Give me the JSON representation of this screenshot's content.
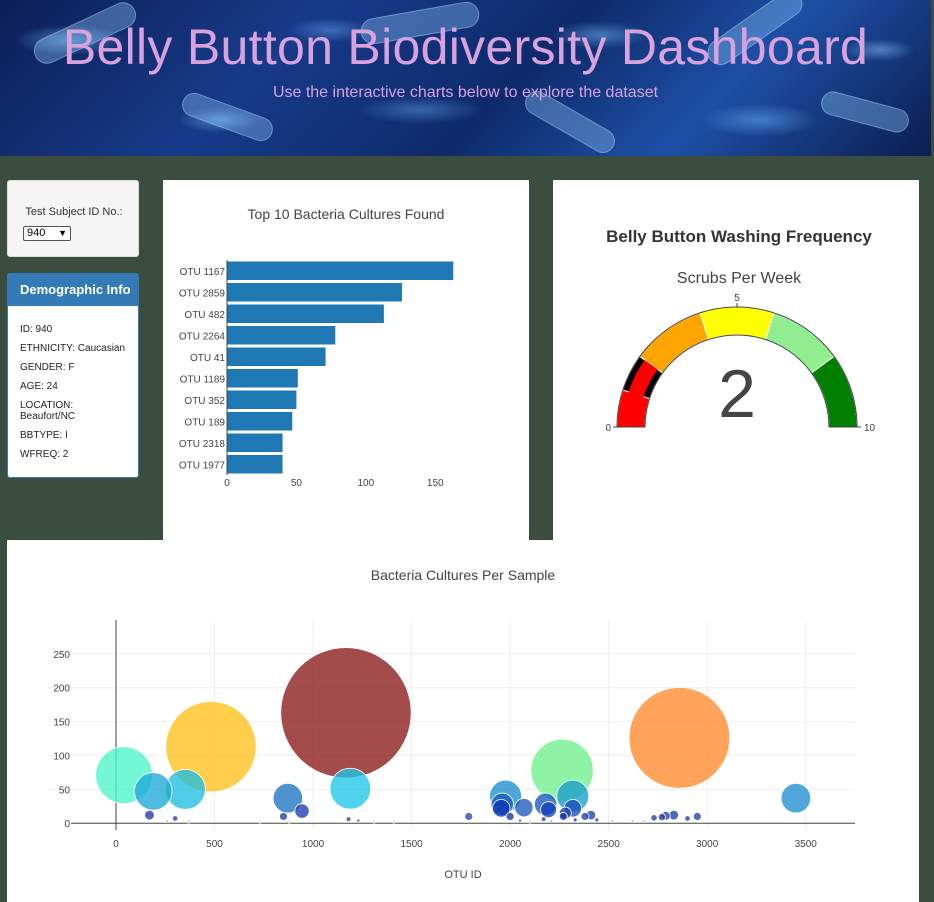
{
  "header": {
    "title": "Belly Button Biodiversity Dashboard",
    "subtitle": "Use the interactive charts below to explore the dataset"
  },
  "selector": {
    "label": "Test Subject ID No.:",
    "value": "940"
  },
  "demographic": {
    "title": "Demographic Info",
    "rows": [
      "ID: 940",
      "ETHNICITY: Caucasian",
      "GENDER: F",
      "AGE: 24",
      "LOCATION: Beaufort/NC",
      "BBTYPE: I",
      "WFREQ: 2"
    ]
  },
  "colors": {
    "bar": "#1f77b4",
    "header_text": "#d8a2dd",
    "panel_accent": "#337ab7"
  },
  "chart_data": [
    {
      "type": "bar",
      "orientation": "horizontal",
      "title": "Top 10 Bacteria Cultures Found",
      "categories": [
        "OTU 1167",
        "OTU 2859",
        "OTU 482",
        "OTU 2264",
        "OTU 41",
        "OTU 1189",
        "OTU 352",
        "OTU 189",
        "OTU 2318",
        "OTU 1977"
      ],
      "values": [
        163,
        126,
        113,
        78,
        71,
        51,
        50,
        47,
        40,
        40
      ],
      "xticks": [
        0,
        50,
        100,
        150
      ],
      "xlim": [
        0,
        170
      ]
    },
    {
      "type": "gauge",
      "title": "Belly Button Washing Frequency",
      "subtitle": "Scrubs Per Week",
      "value": 2,
      "range": [
        0,
        10
      ],
      "tick_labels": [
        "0",
        "5",
        "10"
      ],
      "steps": [
        {
          "from": 0,
          "to": 1,
          "color": "#ff0000"
        },
        {
          "from": 1,
          "to": 2,
          "color": "#000000"
        },
        {
          "from": 2,
          "to": 4,
          "color": "#ffa500"
        },
        {
          "from": 4,
          "to": 6,
          "color": "#ffff00"
        },
        {
          "from": 6,
          "to": 8,
          "color": "#90ee90"
        },
        {
          "from": 8,
          "to": 10,
          "color": "#008000"
        }
      ]
    },
    {
      "type": "scatter",
      "title": "Bacteria Cultures Per Sample",
      "xlabel": "OTU ID",
      "xlim": [
        -350,
        3750
      ],
      "ylim": [
        -10,
        300
      ],
      "xticks": [
        0,
        500,
        1000,
        1500,
        2000,
        2500,
        3000,
        3500
      ],
      "yticks": [
        0,
        50,
        100,
        150,
        200,
        250
      ],
      "points": [
        {
          "x": 1167,
          "y": 163,
          "color": "#8b1a1a"
        },
        {
          "x": 2859,
          "y": 126,
          "color": "#ff8a2b"
        },
        {
          "x": 482,
          "y": 113,
          "color": "#ffc21a"
        },
        {
          "x": 2264,
          "y": 78,
          "color": "#6ef08a"
        },
        {
          "x": 41,
          "y": 71,
          "color": "#4df5c9"
        },
        {
          "x": 1189,
          "y": 51,
          "color": "#1fc8e8"
        },
        {
          "x": 352,
          "y": 50,
          "color": "#20bce0"
        },
        {
          "x": 189,
          "y": 47,
          "color": "#1ea8d8"
        },
        {
          "x": 2318,
          "y": 40,
          "color": "#1a9ccc"
        },
        {
          "x": 1977,
          "y": 40,
          "color": "#1a8ed0"
        },
        {
          "x": 3450,
          "y": 37,
          "color": "#1f8ed0"
        },
        {
          "x": 872,
          "y": 37,
          "color": "#1e74c4"
        },
        {
          "x": 1960,
          "y": 28,
          "color": "#1a5cc0"
        },
        {
          "x": 2180,
          "y": 28,
          "color": "#1958bb"
        },
        {
          "x": 2070,
          "y": 23,
          "color": "#1f5ac0"
        },
        {
          "x": 1955,
          "y": 22,
          "color": "#0c36b8"
        },
        {
          "x": 2195,
          "y": 20,
          "color": "#133fb8"
        },
        {
          "x": 2318,
          "y": 22,
          "color": "#1650bb"
        },
        {
          "x": 944,
          "y": 18,
          "color": "#1c3bb0"
        },
        {
          "x": 2280,
          "y": 15,
          "color": "#1a40b0"
        },
        {
          "x": 2830,
          "y": 12,
          "color": "#1a3eaa"
        },
        {
          "x": 2410,
          "y": 12,
          "color": "#1f42ab"
        },
        {
          "x": 2790,
          "y": 11,
          "color": "#2040a8"
        },
        {
          "x": 2380,
          "y": 10,
          "color": "#1f3da5"
        },
        {
          "x": 2950,
          "y": 10,
          "color": "#2242a8"
        },
        {
          "x": 2000,
          "y": 10,
          "color": "#1333a5"
        },
        {
          "x": 2270,
          "y": 10,
          "color": "#1536a0"
        },
        {
          "x": 170,
          "y": 12,
          "color": "#1f37a0"
        },
        {
          "x": 1790,
          "y": 10,
          "color": "#3245a5"
        },
        {
          "x": 850,
          "y": 10,
          "color": "#2a3ea0"
        },
        {
          "x": 2730,
          "y": 8,
          "color": "#303ea0"
        },
        {
          "x": 2770,
          "y": 9,
          "color": "#253b9e"
        },
        {
          "x": 2900,
          "y": 7,
          "color": "#2a3a9c"
        },
        {
          "x": 300,
          "y": 7,
          "color": "#2d3a9c"
        },
        {
          "x": 1180,
          "y": 6,
          "color": "#2b3a9a"
        },
        {
          "x": 2170,
          "y": 6,
          "color": "#2d3a98"
        },
        {
          "x": 2330,
          "y": 5,
          "color": "#2f3a98"
        },
        {
          "x": 2440,
          "y": 5,
          "color": "#313a98"
        },
        {
          "x": 1230,
          "y": 4,
          "color": "#323a96"
        },
        {
          "x": 2050,
          "y": 4,
          "color": "#333b96"
        },
        {
          "x": 2520,
          "y": 3,
          "color": "#7c80b0"
        },
        {
          "x": 2620,
          "y": 3,
          "color": "#7c80b0"
        },
        {
          "x": 2680,
          "y": 3,
          "color": "#7c80b0"
        },
        {
          "x": 2210,
          "y": 3,
          "color": "#4b5ab0"
        },
        {
          "x": 2100,
          "y": 2,
          "color": "#7c80b0"
        },
        {
          "x": 260,
          "y": 3,
          "color": "#7c80b0"
        },
        {
          "x": 370,
          "y": 2,
          "color": "#7c80b0"
        },
        {
          "x": 730,
          "y": 2,
          "color": "#9ea2c0"
        },
        {
          "x": 880,
          "y": 2,
          "color": "#9ea2c0"
        },
        {
          "x": 1410,
          "y": 2,
          "color": "#9ea2c0"
        },
        {
          "x": 1310,
          "y": 2,
          "color": "#9ea2c0"
        }
      ]
    }
  ]
}
